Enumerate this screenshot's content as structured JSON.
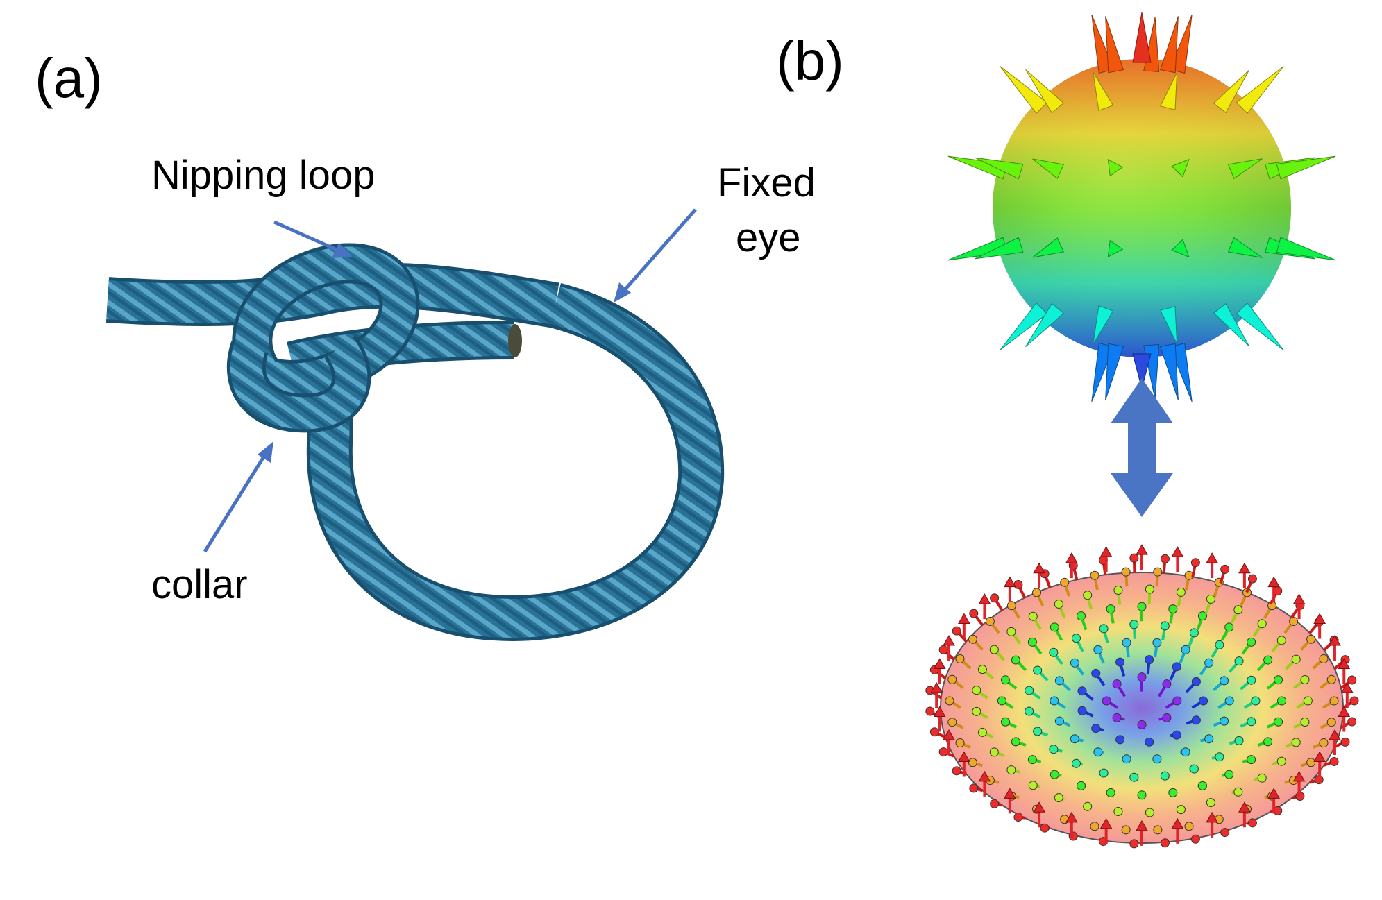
{
  "panel_a": {
    "label": "(a)",
    "callouts": {
      "nipping_loop": "Nipping loop",
      "fixed_eye_line1": "Fixed",
      "fixed_eye_line2": "eye",
      "collar": "collar"
    }
  },
  "panel_b": {
    "label": "(b)"
  },
  "colors": {
    "rope": "#2a7398",
    "rope_dark": "#184f6e",
    "rope_light": "#5aa6c8",
    "callout_arrow": "#4a72c4",
    "double_arrow": "#4a74c4",
    "disk_fill_outer": "#f4a1a1",
    "red_arrow": "#e0242a"
  }
}
